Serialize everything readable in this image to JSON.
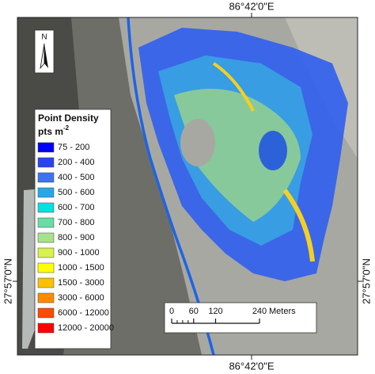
{
  "map": {
    "coordinates": {
      "top": "86°42'0\"E",
      "bottom": "86°42'0\"E",
      "left": "27°57'0\"N",
      "right": "27°57'0\"N"
    },
    "north_arrow": "N",
    "legend": {
      "title": "Point Density",
      "unit": "pts m",
      "unit_exponent": "-2",
      "items": [
        {
          "label": "75 - 200",
          "color": "#0000ff"
        },
        {
          "label": "200 - 400",
          "color": "#2a44f2"
        },
        {
          "label": "400 - 500",
          "color": "#3d74ee"
        },
        {
          "label": "500 - 600",
          "color": "#2aa6e8"
        },
        {
          "label": "600 - 700",
          "color": "#00e2e2"
        },
        {
          "label": "700 - 800",
          "color": "#66dea6"
        },
        {
          "label": "800 - 900",
          "color": "#a6e28a"
        },
        {
          "label": "900 - 1000",
          "color": "#d8f050"
        },
        {
          "label": "1000 - 1500",
          "color": "#ffff00"
        },
        {
          "label": "1500 - 3000",
          "color": "#ffc000"
        },
        {
          "label": "3000 - 6000",
          "color": "#ff8a00"
        },
        {
          "label": "6000 - 12000",
          "color": "#ff4a00"
        },
        {
          "label": "12000 - 20000",
          "color": "#ff0000"
        }
      ]
    },
    "scale_bar": {
      "ticks": [
        0,
        60,
        120,
        240
      ],
      "unit": "Meters"
    }
  }
}
